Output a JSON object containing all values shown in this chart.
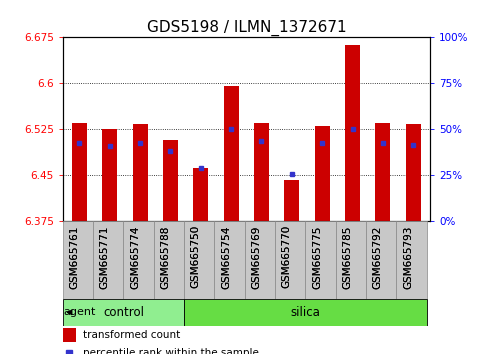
{
  "title": "GDS5198 / ILMN_1372671",
  "samples": [
    "GSM665761",
    "GSM665771",
    "GSM665774",
    "GSM665788",
    "GSM665750",
    "GSM665754",
    "GSM665769",
    "GSM665770",
    "GSM665775",
    "GSM665785",
    "GSM665792",
    "GSM665793"
  ],
  "red_values": [
    6.535,
    6.525,
    6.533,
    6.508,
    6.462,
    6.595,
    6.535,
    6.443,
    6.53,
    6.662,
    6.535,
    6.533
  ],
  "blue_values": [
    6.502,
    6.497,
    6.502,
    6.49,
    6.462,
    6.525,
    6.505,
    6.452,
    6.502,
    6.525,
    6.502,
    6.5
  ],
  "ymin": 6.375,
  "ymax": 6.675,
  "yticks": [
    6.375,
    6.45,
    6.525,
    6.6,
    6.675
  ],
  "right_yticks": [
    0,
    25,
    50,
    75,
    100
  ],
  "n_control": 4,
  "bar_color": "#CC0000",
  "blue_color": "#3333CC",
  "control_color": "#90EE90",
  "silica_color": "#66DD44",
  "agent_label": "agent",
  "control_label": "control",
  "silica_label": "silica",
  "legend_red": "transformed count",
  "legend_blue": "percentile rank within the sample",
  "title_fontsize": 11,
  "tick_fontsize": 7.5,
  "bar_width": 0.5,
  "gray_box_color": "#C8C8C8"
}
